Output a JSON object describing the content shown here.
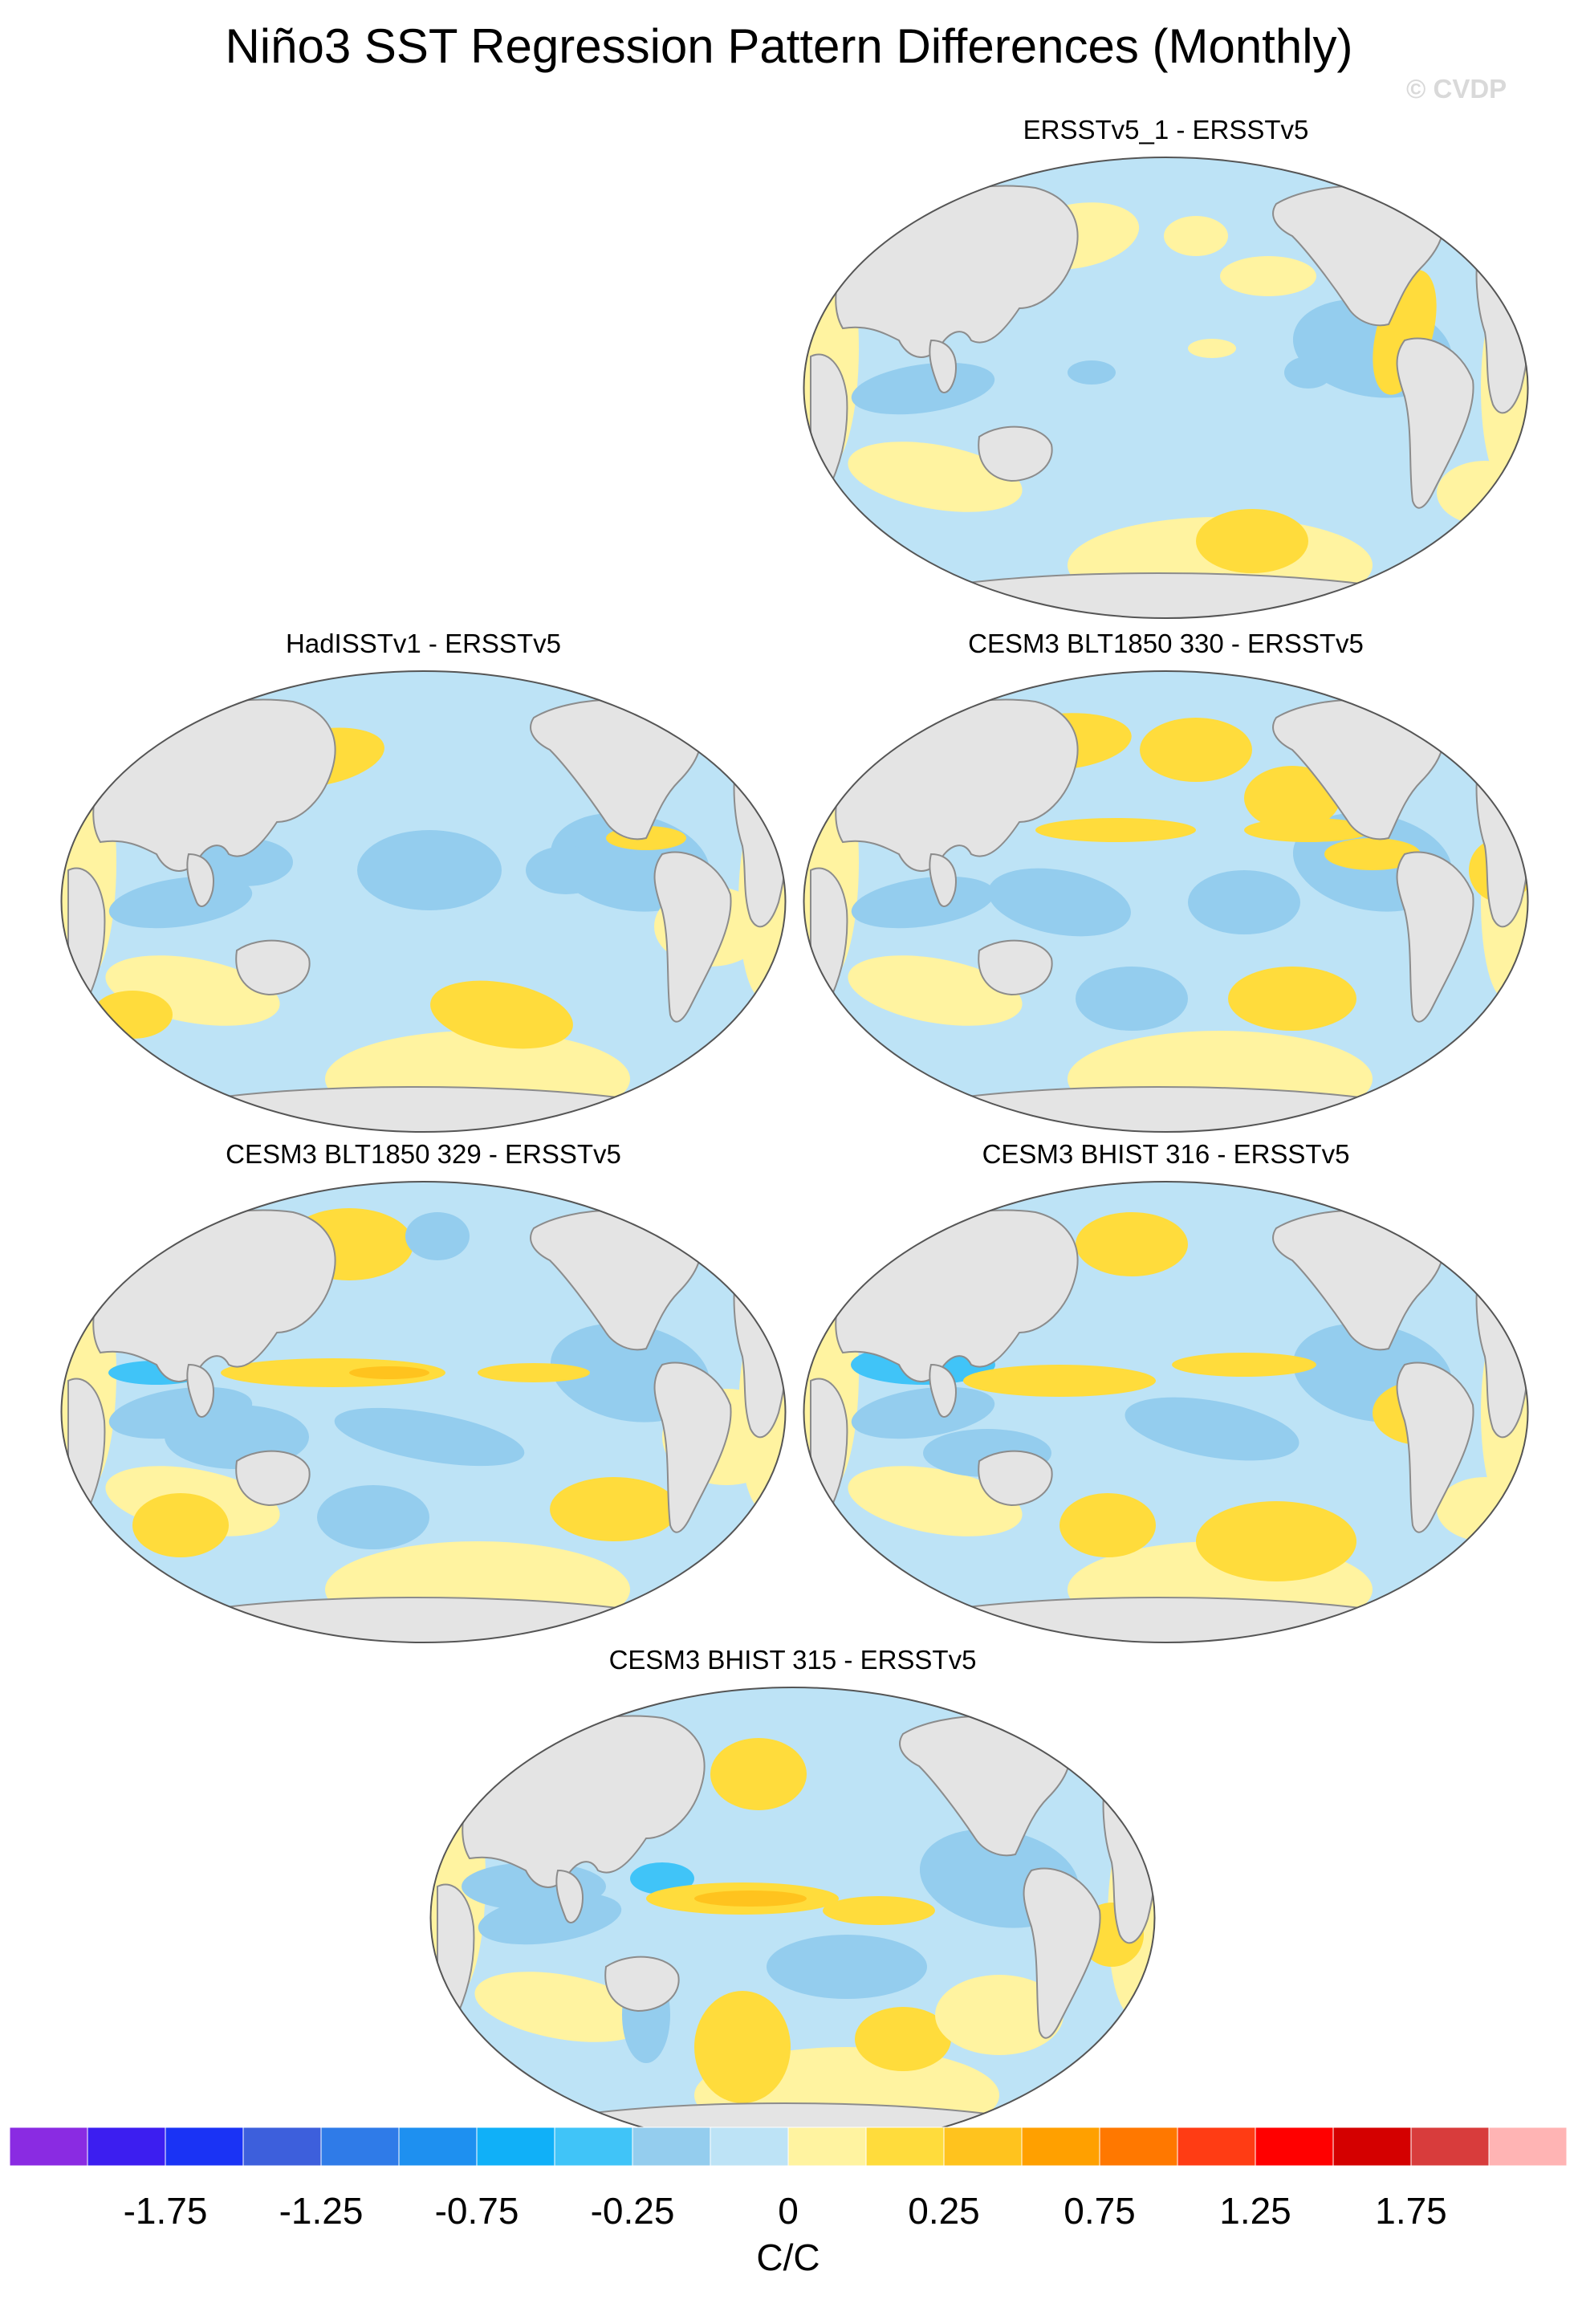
{
  "title": "Niño3 SST Regression Pattern Differences (Monthly)",
  "copyright": "© CVDP",
  "panels": [
    {
      "id": "p1",
      "title": "ERSSTv5_1 - ERSSTv5"
    },
    {
      "id": "p2",
      "title": "HadISSTv1 - ERSSTv5"
    },
    {
      "id": "p3",
      "title": "CESM3 BLT1850 330 - ERSSTv5"
    },
    {
      "id": "p4",
      "title": "CESM3 BLT1850 329 - ERSSTv5"
    },
    {
      "id": "p5",
      "title": "CESM3 BHIST 316 - ERSSTv5"
    },
    {
      "id": "p6",
      "title": "CESM3 BHIST 315 - ERSSTv5"
    }
  ],
  "colorbar": {
    "units": "C/C",
    "labels": [
      "-1.75",
      "-1.25",
      "-0.75",
      "-0.25",
      "0",
      "0.25",
      "0.75",
      "1.25",
      "1.75"
    ],
    "colors": [
      "#8a2be2",
      "#3c1ef0",
      "#1a33f5",
      "#3d5fdc",
      "#2f7be8",
      "#1e90f0",
      "#10b0f8",
      "#40c4f8",
      "#94cdee",
      "#bde3f6",
      "#fff3a0",
      "#ffdc3c",
      "#ffc31e",
      "#ffa000",
      "#ff7800",
      "#ff3c14",
      "#ff0000",
      "#d40000",
      "#d83c3c",
      "#ffb4b4"
    ],
    "land_color": "#e4e4e4",
    "coast_color": "#8c8c8c"
  }
}
